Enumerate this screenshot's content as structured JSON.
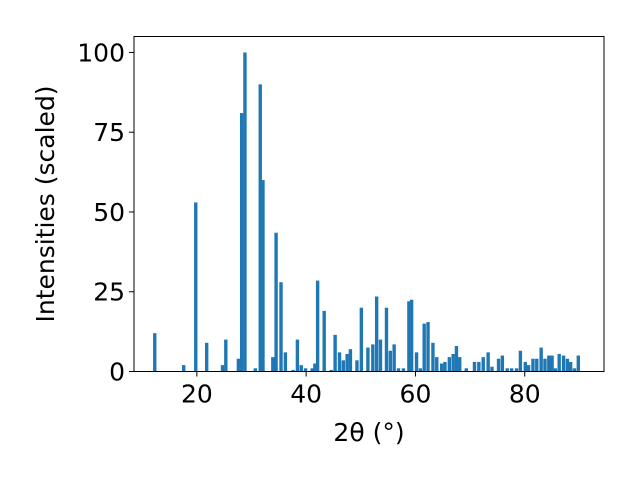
{
  "chart_data": {
    "type": "bar",
    "xlabel": "2θ (°)",
    "ylabel": "Intensities (scaled)",
    "xlim": [
      8.5,
      94.5
    ],
    "ylim": [
      0,
      105
    ],
    "xticks": [
      20,
      40,
      60,
      80
    ],
    "yticks": [
      0,
      25,
      50,
      75,
      100
    ],
    "xtick_labels": [
      "20",
      "40",
      "60",
      "80"
    ],
    "ytick_labels": [
      "0",
      "25",
      "50",
      "75",
      "100"
    ],
    "bar_color": "#1f77b4",
    "x": [
      12.3,
      17.6,
      19.8,
      21.8,
      24.7,
      25.3,
      27.6,
      28.2,
      28.8,
      30.7,
      31.6,
      32.1,
      33.9,
      34.5,
      35.4,
      36.2,
      37.6,
      38.4,
      39.1,
      39.9,
      41.1,
      41.6,
      42.1,
      43.3,
      44.6,
      45.3,
      46.1,
      46.8,
      47.5,
      48.1,
      49.3,
      50.1,
      51.3,
      52.2,
      52.9,
      53.6,
      54.7,
      55.4,
      56.1,
      56.9,
      57.8,
      58.8,
      59.3,
      60.2,
      60.9,
      61.6,
      62.3,
      63.2,
      63.9,
      64.8,
      65.4,
      66.2,
      66.9,
      67.5,
      68.1,
      69.3,
      70.8,
      71.6,
      72.4,
      73.3,
      74.0,
      75.2,
      75.9,
      76.8,
      77.6,
      78.5,
      79.2,
      80.1,
      80.7,
      81.5,
      82.2,
      83.0,
      83.7,
      84.4,
      85.0,
      85.6,
      86.3,
      87.1,
      87.8,
      88.4,
      89.1,
      89.8
    ],
    "values": [
      12,
      2,
      53,
      9,
      2,
      10,
      4,
      81,
      100,
      1,
      90,
      60,
      4.5,
      43.5,
      28,
      6,
      0.5,
      10,
      2,
      1,
      1,
      2.5,
      28.5,
      19,
      0.5,
      11.5,
      6,
      3.5,
      5.5,
      7,
      3.5,
      20,
      7.5,
      8.5,
      23.5,
      10,
      20,
      6.5,
      8.5,
      1,
      1,
      22,
      22.5,
      6,
      1,
      15,
      15.5,
      9,
      4.5,
      2.5,
      3,
      4.5,
      5.5,
      8,
      4.5,
      1,
      3,
      3,
      4.5,
      6,
      1.5,
      4,
      5,
      1,
      1,
      1,
      6.5,
      3,
      2,
      4,
      4,
      7.5,
      4,
      5,
      5,
      1,
      5.5,
      5,
      4,
      3,
      1,
      5
    ],
    "bar_width": 0.62
  }
}
